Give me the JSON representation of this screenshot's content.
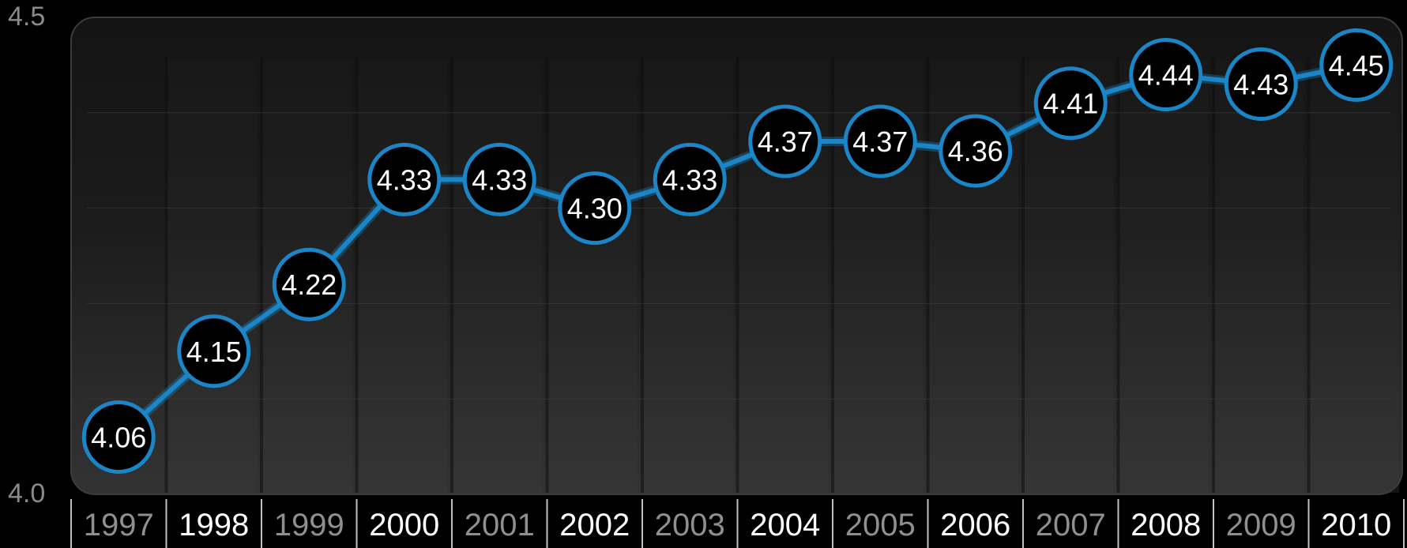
{
  "chart_data": {
    "type": "line",
    "title": "",
    "xlabel": "",
    "ylabel": "",
    "ylim": [
      4.0,
      4.5
    ],
    "y_ticks": [
      "4.0",
      "4.5"
    ],
    "grid": true,
    "categories": [
      "1997",
      "1998",
      "1999",
      "2000",
      "2001",
      "2002",
      "2003",
      "2004",
      "2005",
      "2006",
      "2007",
      "2008",
      "2009",
      "2010"
    ],
    "series": [
      {
        "values": [
          4.06,
          4.15,
          4.22,
          4.33,
          4.33,
          4.3,
          4.33,
          4.37,
          4.37,
          4.36,
          4.41,
          4.44,
          4.43,
          4.45
        ],
        "labels": [
          "4.06",
          "4.15",
          "4.22",
          "4.33",
          "4.33",
          "4.30",
          "4.33",
          "4.37",
          "4.37",
          "4.36",
          "4.41",
          "4.44",
          "4.43",
          "4.45"
        ]
      }
    ],
    "colors": {
      "line": "#1a86c8",
      "marker_fill": "#000000",
      "marker_stroke": "#1a86c8"
    }
  }
}
